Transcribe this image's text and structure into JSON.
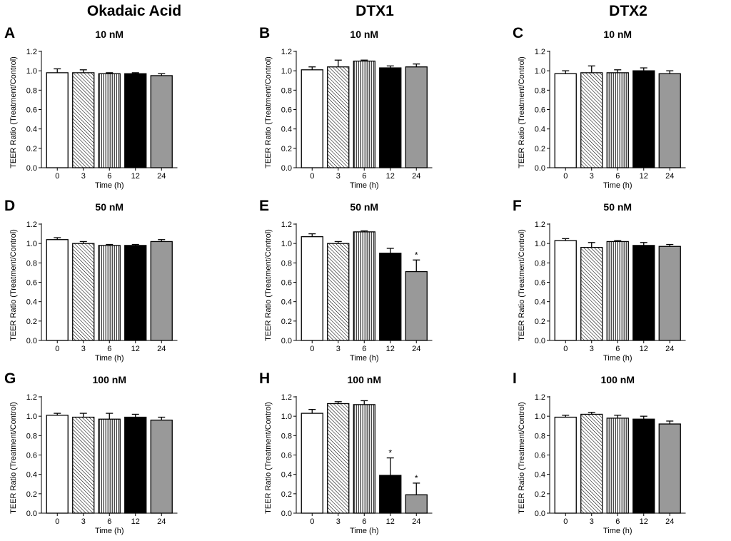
{
  "column_titles": [
    "Okadaic Acid",
    "DTX1",
    "DTX2"
  ],
  "colors": {
    "white_bar": "#ffffff",
    "black_bar": "#000000",
    "gray_bar": "#999999",
    "stroke": "#000000"
  },
  "chart_data": [
    {
      "panel": "A",
      "toxin": "Okadaic Acid",
      "title": "10 nM",
      "type": "bar",
      "categories": [
        "0",
        "3",
        "6",
        "12",
        "24"
      ],
      "values": [
        0.98,
        0.98,
        0.97,
        0.97,
        0.95
      ],
      "errors": [
        0.04,
        0.03,
        0.01,
        0.01,
        0.02
      ],
      "significant": [
        false,
        false,
        false,
        false,
        false
      ],
      "xlabel": "Time (h)",
      "ylabel": "TEER Ratio (Treatment/Control)",
      "ylim": [
        0,
        1.2
      ],
      "yticks": [
        "0.0",
        "0.2",
        "0.4",
        "0.6",
        "0.8",
        "1.0",
        "1.2"
      ],
      "patterns": [
        "white",
        "diag",
        "vert",
        "black",
        "gray"
      ]
    },
    {
      "panel": "B",
      "toxin": "DTX1",
      "title": "10 nM",
      "type": "bar",
      "categories": [
        "0",
        "3",
        "6",
        "12",
        "24"
      ],
      "values": [
        1.01,
        1.04,
        1.1,
        1.03,
        1.04
      ],
      "errors": [
        0.03,
        0.07,
        0.01,
        0.02,
        0.03
      ],
      "significant": [
        false,
        false,
        false,
        false,
        false
      ],
      "xlabel": "Time (h)",
      "ylabel": "TEER Ratio (Treatment/Control)",
      "ylim": [
        0,
        1.2
      ],
      "yticks": [
        "0.0",
        "0.2",
        "0.4",
        "0.6",
        "0.8",
        "1.0",
        "1.2"
      ],
      "patterns": [
        "white",
        "diag",
        "vert",
        "black",
        "gray"
      ]
    },
    {
      "panel": "C",
      "toxin": "DTX2",
      "title": "10 nM",
      "type": "bar",
      "categories": [
        "0",
        "3",
        "6",
        "12",
        "24"
      ],
      "values": [
        0.97,
        0.98,
        0.98,
        1.0,
        0.97
      ],
      "errors": [
        0.03,
        0.07,
        0.03,
        0.03,
        0.03
      ],
      "significant": [
        false,
        false,
        false,
        false,
        false
      ],
      "xlabel": "Time (h)",
      "ylabel": "TEER Ratio (Treatment/Control)",
      "ylim": [
        0,
        1.2
      ],
      "yticks": [
        "0.0",
        "0.2",
        "0.4",
        "0.6",
        "0.8",
        "1.0",
        "1.2"
      ],
      "patterns": [
        "white",
        "diag",
        "vert",
        "black",
        "gray"
      ]
    },
    {
      "panel": "D",
      "toxin": "Okadaic Acid",
      "title": "50 nM",
      "type": "bar",
      "categories": [
        "0",
        "3",
        "6",
        "12",
        "24"
      ],
      "values": [
        1.04,
        1.0,
        0.98,
        0.98,
        1.02
      ],
      "errors": [
        0.02,
        0.02,
        0.01,
        0.01,
        0.02
      ],
      "significant": [
        false,
        false,
        false,
        false,
        false
      ],
      "xlabel": "Time (h)",
      "ylabel": "TEER Ratio (Treatment/Control)",
      "ylim": [
        0,
        1.2
      ],
      "yticks": [
        "0.0",
        "0.2",
        "0.4",
        "0.6",
        "0.8",
        "1.0",
        "1.2"
      ],
      "patterns": [
        "white",
        "diag",
        "vert",
        "black",
        "gray"
      ]
    },
    {
      "panel": "E",
      "toxin": "DTX1",
      "title": "50 nM",
      "type": "bar",
      "categories": [
        "0",
        "3",
        "6",
        "12",
        "24"
      ],
      "values": [
        1.07,
        1.0,
        1.12,
        0.9,
        0.71
      ],
      "errors": [
        0.03,
        0.02,
        0.01,
        0.05,
        0.12
      ],
      "significant": [
        false,
        false,
        false,
        false,
        true
      ],
      "xlabel": "Time (h)",
      "ylabel": "TEER Ratio (Treatment/Control)",
      "ylim": [
        0,
        1.2
      ],
      "yticks": [
        "0.0",
        "0.2",
        "0.4",
        "0.6",
        "0.8",
        "1.0",
        "1.2"
      ],
      "patterns": [
        "white",
        "diag",
        "vert",
        "black",
        "gray"
      ]
    },
    {
      "panel": "F",
      "toxin": "DTX2",
      "title": "50 nM",
      "type": "bar",
      "categories": [
        "0",
        "3",
        "6",
        "12",
        "24"
      ],
      "values": [
        1.03,
        0.96,
        1.02,
        0.98,
        0.97
      ],
      "errors": [
        0.02,
        0.05,
        0.01,
        0.03,
        0.02
      ],
      "significant": [
        false,
        false,
        false,
        false,
        false
      ],
      "xlabel": "Time (h)",
      "ylabel": "TEER Ratio (Treatment/Control)",
      "ylim": [
        0,
        1.2
      ],
      "yticks": [
        "0.0",
        "0.2",
        "0.4",
        "0.6",
        "0.8",
        "1.0",
        "1.2"
      ],
      "patterns": [
        "white",
        "diag",
        "vert",
        "black",
        "gray"
      ]
    },
    {
      "panel": "G",
      "toxin": "Okadaic Acid",
      "title": "100 nM",
      "type": "bar",
      "categories": [
        "0",
        "3",
        "6",
        "12",
        "24"
      ],
      "values": [
        1.01,
        0.99,
        0.97,
        0.99,
        0.96
      ],
      "errors": [
        0.02,
        0.04,
        0.06,
        0.03,
        0.03
      ],
      "significant": [
        false,
        false,
        false,
        false,
        false
      ],
      "xlabel": "Time (h)",
      "ylabel": "TEER Ratio (Treatment/Control)",
      "ylim": [
        0,
        1.2
      ],
      "yticks": [
        "0.0",
        "0.2",
        "0.4",
        "0.6",
        "0.8",
        "1.0",
        "1.2"
      ],
      "patterns": [
        "white",
        "diag",
        "vert",
        "black",
        "gray"
      ]
    },
    {
      "panel": "H",
      "toxin": "DTX1",
      "title": "100 nM",
      "type": "bar",
      "categories": [
        "0",
        "3",
        "6",
        "12",
        "24"
      ],
      "values": [
        1.03,
        1.13,
        1.12,
        0.39,
        0.19
      ],
      "errors": [
        0.04,
        0.02,
        0.04,
        0.18,
        0.12
      ],
      "significant": [
        false,
        false,
        false,
        true,
        true
      ],
      "xlabel": "Time (h)",
      "ylabel": "TEER Ratio (Treatment/Control)",
      "ylim": [
        0,
        1.2
      ],
      "yticks": [
        "0.0",
        "0.2",
        "0.4",
        "0.6",
        "0.8",
        "1.0",
        "1.2"
      ],
      "patterns": [
        "white",
        "diag",
        "vert",
        "black",
        "gray"
      ]
    },
    {
      "panel": "I",
      "toxin": "DTX2",
      "title": "100 nM",
      "type": "bar",
      "categories": [
        "0",
        "3",
        "6",
        "12",
        "24"
      ],
      "values": [
        0.99,
        1.02,
        0.98,
        0.97,
        0.92
      ],
      "errors": [
        0.02,
        0.02,
        0.03,
        0.03,
        0.03
      ],
      "significant": [
        false,
        false,
        false,
        false,
        false
      ],
      "xlabel": "Time (h)",
      "ylabel": "TEER Ratio (Treatment/Control)",
      "ylim": [
        0,
        1.2
      ],
      "yticks": [
        "0.0",
        "0.2",
        "0.4",
        "0.6",
        "0.8",
        "1.0",
        "1.2"
      ],
      "patterns": [
        "white",
        "diag",
        "vert",
        "black",
        "gray"
      ]
    }
  ]
}
